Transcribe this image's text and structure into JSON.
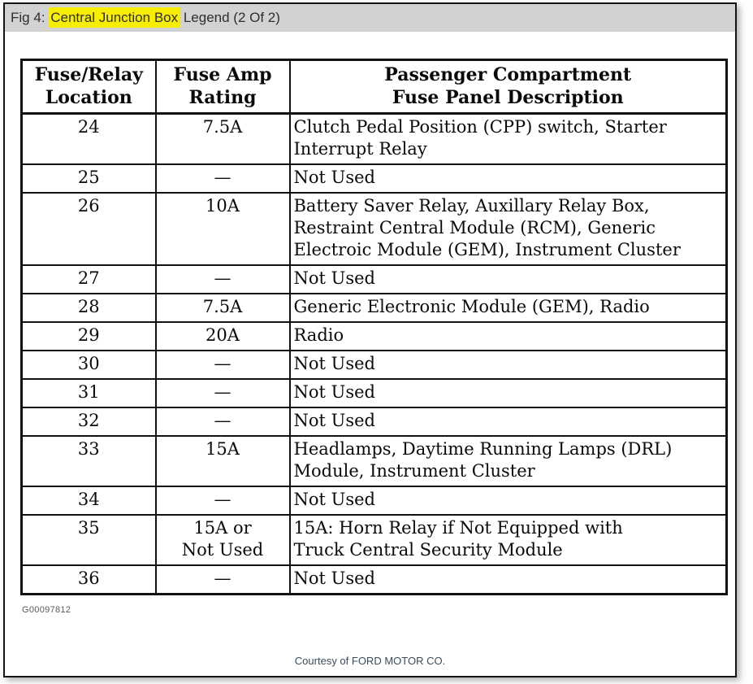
{
  "figure": {
    "caption_prefix": "Fig 4: ",
    "caption_highlight": "Central Junction Box",
    "caption_suffix": " Legend (2 Of 2)"
  },
  "colors": {
    "caption_bar_bg": "#d2d2d2",
    "highlight_yellow": "#f7ee00",
    "page_border": "#141414",
    "table_border": "#111111",
    "figure_code_text": "#5a5a5a",
    "courtesy_text": "#3a4b5c"
  },
  "table": {
    "headers": {
      "location": "Fuse/Relay\nLocation",
      "rating": "Fuse Amp\nRating",
      "description": "Passenger Compartment\nFuse Panel Description"
    },
    "rows": [
      {
        "location": "24",
        "rating": "7.5A",
        "description": "Clutch Pedal Position (CPP) switch, Starter\nInterrupt Relay"
      },
      {
        "location": "25",
        "rating": "—",
        "description": "Not Used"
      },
      {
        "location": "26",
        "rating": "10A",
        "description": "Battery Saver Relay, Auxillary Relay Box,\nRestraint Central Module (RCM), Generic\nElectroic Module (GEM), Instrument Cluster"
      },
      {
        "location": "27",
        "rating": "—",
        "description": "Not Used"
      },
      {
        "location": "28",
        "rating": "7.5A",
        "description": "Generic Electronic Module (GEM), Radio"
      },
      {
        "location": "29",
        "rating": "20A",
        "description": "Radio"
      },
      {
        "location": "30",
        "rating": "—",
        "description": "Not Used"
      },
      {
        "location": "31",
        "rating": "—",
        "description": "Not Used"
      },
      {
        "location": "32",
        "rating": "—",
        "description": "Not Used"
      },
      {
        "location": "33",
        "rating": "15A",
        "description": "Headlamps, Daytime Running Lamps (DRL)\nModule, Instrument Cluster"
      },
      {
        "location": "34",
        "rating": "—",
        "description": "Not Used"
      },
      {
        "location": "35",
        "rating": "15A or\nNot Used",
        "description": "15A: Horn Relay if Not Equipped with\nTruck Central Security Module"
      },
      {
        "location": "36",
        "rating": "—",
        "description": "Not Used"
      }
    ]
  },
  "footer": {
    "figure_code": "G00097812",
    "courtesy": "Courtesy of FORD MOTOR CO."
  }
}
